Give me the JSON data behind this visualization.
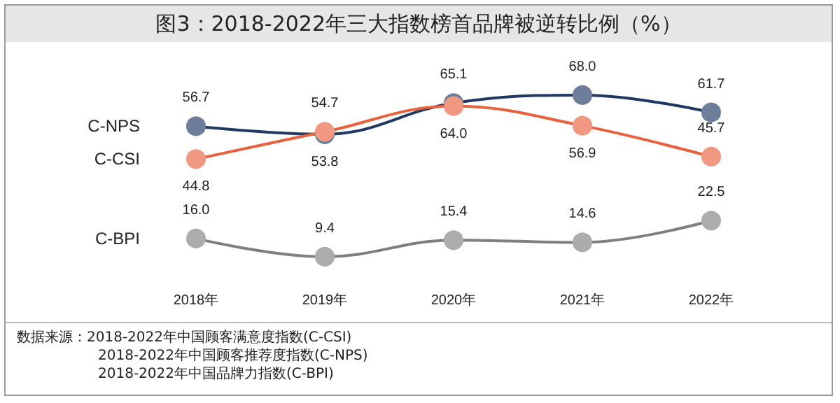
{
  "chart_data": {
    "type": "line",
    "title": "图3：2018-2022年三大指数榜首品牌被逆转比例（%）",
    "categories": [
      "2018年",
      "2019年",
      "2020年",
      "2021年",
      "2022年"
    ],
    "series": [
      {
        "name": "C-NPS",
        "color": "#1f3864",
        "values": [
          56.7,
          53.8,
          65.1,
          68.0,
          61.7
        ],
        "value_labels": [
          "56.7",
          "53.8",
          "65.1",
          "68.0",
          "61.7"
        ]
      },
      {
        "name": "C-CSI",
        "color": "#e8603c",
        "values": [
          44.8,
          54.7,
          64.0,
          56.9,
          45.7
        ],
        "value_labels": [
          "44.8",
          "54.7",
          "64.0",
          "56.9",
          "45.7"
        ]
      },
      {
        "name": "C-BPI",
        "color": "#7f7f7f",
        "values": [
          16.0,
          9.4,
          15.4,
          14.6,
          22.5
        ],
        "value_labels": [
          "16.0",
          "9.4",
          "15.4",
          "14.6",
          "22.5"
        ]
      }
    ],
    "marker": "circle",
    "grid": false,
    "legend": false,
    "annotations": [
      "数据来源：2018-2022年中国顾客满意度指数(C-CSI)",
      "2018-2022年中国顾客推荐度指数(C-NPS)",
      "2018-2022年中国品牌力指数(C-BPI)"
    ]
  }
}
